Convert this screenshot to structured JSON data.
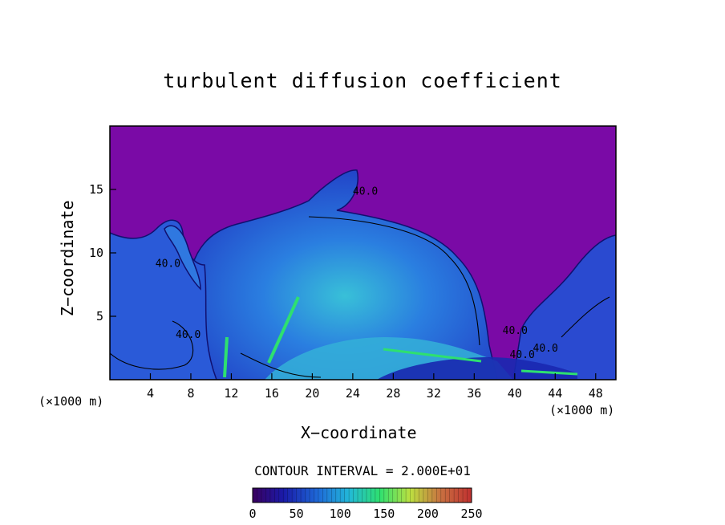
{
  "chart_data": {
    "type": "heatmap",
    "title": "turbulent diffusion coefficient",
    "xlabel": "X−coordinate",
    "ylabel": "Z−coordinate",
    "x_unit_left": "(×1000 m)",
    "x_unit_right": "(×1000 m)",
    "xlim": [
      0,
      50
    ],
    "ylim": [
      0,
      20
    ],
    "x_ticks": [
      "4",
      "8",
      "12",
      "16",
      "20",
      "24",
      "28",
      "32",
      "36",
      "40",
      "44",
      "48"
    ],
    "y_ticks": [
      "5",
      "10",
      "15"
    ],
    "contour_interval_text": "CONTOUR INTERVAL = 2.000E+01",
    "contour_labels": [
      "40.0",
      "40.0",
      "40.0",
      "40.0",
      "40.0",
      "40.0"
    ],
    "colorbar": {
      "range": [
        0,
        250
      ],
      "tick_labels": [
        "0",
        "50",
        "100",
        "150",
        "200",
        "250"
      ],
      "colors": [
        "#3a0060",
        "#1a1aa8",
        "#1e6ad8",
        "#22b8d8",
        "#2ee070",
        "#bce040",
        "#c87040",
        "#c03030"
      ]
    },
    "background_color": "#7a0aa6"
  }
}
